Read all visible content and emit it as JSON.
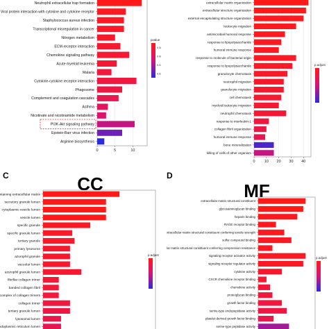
{
  "page": {
    "panel_letters": [
      "C",
      "D"
    ],
    "titles": [
      "CC",
      "MF"
    ]
  },
  "colors": {
    "gradient_high": "#ff1a1a",
    "gradient_mid": "#d41478",
    "gradient_low": "#2a2ae0",
    "highlight_box": "#e03030"
  },
  "chart_data": [
    {
      "id": "A",
      "type": "bar",
      "orientation": "horizontal",
      "categories": [
        "Neutrophil extracellular trap formation",
        "Viral protein interaction with cytokine and cytokine receptor",
        "Staphylococcus aureus infection",
        "Transcriptional misregulation in cancer",
        "Nitrogen metabolism",
        "ECM-receptor interaction",
        "Chemokine signaling pathway",
        "Acute myeloid leukemia",
        "Malaria",
        "Cytokine-cytokine receptor interaction",
        "Phagosome",
        "Complement and coagulation cascades",
        "Asthma",
        "Nicotinate and nicotinamide metabolism",
        "PI3K-Akt signaling pathway",
        "Epstein-Barr virus infection",
        "Arginine biosynthesis"
      ],
      "values": [
        12.5,
        8,
        7.5,
        7.5,
        5,
        6.5,
        9,
        5.5,
        4,
        11,
        7,
        6,
        3,
        2.5,
        10.5,
        7,
        2
      ],
      "color_fraction": [
        0.0,
        0.05,
        0.05,
        0.08,
        0.1,
        0.12,
        0.12,
        0.15,
        0.18,
        0.2,
        0.22,
        0.28,
        0.35,
        0.42,
        0.55,
        0.8,
        1.0
      ],
      "highlighted": "PI3K-Akt signaling pathway",
      "xticks": [
        0,
        5,
        10
      ],
      "xlim": [
        0,
        14
      ],
      "legend_title": "pvalue",
      "legend_labels": [
        "0.08",
        "0.06",
        "0.04",
        "0.02"
      ]
    },
    {
      "id": "B",
      "type": "bar",
      "orientation": "horizontal",
      "categories": [
        "extracellular matrix organization",
        "extracellular structure organization",
        "external encapsulating structure organization",
        "leukocyte migration",
        "antimicrobial humoral response",
        "response to lipopolysaccharide",
        "humoral immune response",
        "response to molecule of bacterial origin",
        "response to lipopolysaccharide",
        "granulocyte chemotaxis",
        "neutrophil migration",
        "granulocyte migration",
        "cell chemotaxis",
        "myeloid leukocyte migration",
        "neutrophil chemotaxis",
        "response to interleukin-1",
        "collagen fibril organization",
        "humoral immune response",
        "bone mineralization",
        "killing of cells of other organism"
      ],
      "values": [
        44,
        42,
        40,
        34,
        25,
        22,
        20,
        34,
        31,
        27,
        24,
        24,
        22,
        20,
        26,
        12,
        10,
        9,
        16,
        16
      ],
      "color_fraction": [
        0.0,
        0.0,
        0.02,
        0.02,
        0.03,
        0.05,
        0.05,
        0.06,
        0.07,
        0.08,
        0.09,
        0.1,
        0.12,
        0.13,
        0.15,
        0.2,
        0.25,
        0.3,
        0.9,
        0.55
      ],
      "xticks": [
        0,
        10,
        20,
        30,
        40
      ],
      "xlim": [
        0,
        46
      ],
      "legend_title": "p.adjust",
      "legend_labels": [
        "",
        "",
        ""
      ]
    },
    {
      "id": "C",
      "type": "bar",
      "orientation": "horizontal",
      "categories": [
        "collagen-containing extracellular matrix",
        "secretory granule lumen",
        "cytoplasmic vesicle lumen",
        "vesicle lumen",
        "specific granule",
        "specific granule lumen",
        "tertiary granule",
        "primary lysosome",
        "azurophil granule",
        "vacuolar lumen",
        "azurophil granule lumen",
        "fibrillar collagen trimer",
        "banded collagen fibril",
        "complex of collagen trimers",
        "collagen trimer",
        "tertiary granule lumen",
        "lysosomal lumen",
        "endoplasmic reticulum lumen"
      ],
      "values": [
        17,
        14,
        14,
        14,
        10.5,
        6.5,
        7,
        6,
        6,
        6,
        8.5,
        3.5,
        3.5,
        3.5,
        6,
        6,
        4,
        4
      ],
      "color_fraction": [
        0.0,
        0.0,
        0.0,
        0.0,
        0.05,
        0.08,
        0.08,
        0.1,
        0.1,
        0.1,
        0.12,
        0.15,
        0.15,
        0.18,
        0.2,
        0.22,
        0.25,
        0.3
      ],
      "xlim": [
        0,
        25
      ],
      "legend_title": "p.adjust",
      "legend_labels": [
        "",
        "",
        "",
        ""
      ]
    },
    {
      "id": "D",
      "type": "bar",
      "orientation": "horizontal",
      "categories": [
        "extracellular matrix structural constituent",
        "glycosaminoglycan binding",
        "heparin binding",
        "RAGE receptor binding",
        "extracellular matrix structural constituent conferring tensile strength",
        "sulfur compound binding",
        "extracellular matrix structural constituent conferring compression resistance",
        "signaling receptor activator activity",
        "signaling receptor regulator activity",
        "cytokine activity",
        "CXCR chemokine receptor binding",
        "chemokine activity",
        "proteoglycan binding",
        "growth factor binding",
        "serine-type endopeptidase activity",
        "platelet-derived growth factor binding",
        "serine-type peptidase activity"
      ],
      "values": [
        20,
        19,
        16.5,
        7.5,
        11,
        14,
        6,
        20,
        19,
        10,
        3.5,
        5,
        6,
        10,
        12,
        6.5,
        13
      ],
      "color_fraction": [
        0.0,
        0.0,
        0.02,
        0.03,
        0.03,
        0.05,
        0.05,
        0.05,
        0.06,
        0.1,
        0.12,
        0.15,
        0.18,
        0.2,
        0.22,
        0.25,
        0.65
      ],
      "xlim": [
        0,
        24
      ],
      "legend_title": "p.adjust",
      "legend_labels": [
        "",
        "",
        "",
        ""
      ]
    }
  ]
}
